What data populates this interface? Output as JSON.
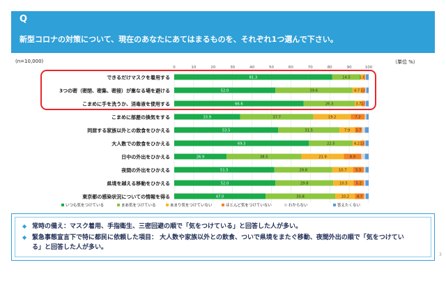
{
  "header": {
    "q": "Q",
    "question": "新型コロナの対策について、現在のあなたにあてはまるものを、それぞれ1つ選んで下さい。"
  },
  "n_label": "(n=10,000)",
  "unit_label": "（単位 %）",
  "colors": {
    "header_bg": "#2fa0d8",
    "highlight": "#e8262a"
  },
  "chart_data": {
    "type": "bar",
    "orientation": "horizontal",
    "stacked": true,
    "xlim": [
      0,
      100
    ],
    "x_ticks": [
      0,
      10,
      20,
      30,
      40,
      50,
      60,
      70,
      80,
      90,
      100
    ],
    "categories": [
      "できるだけマスクを着用する",
      "3つの密（密閉、密集、密接）が重なる場を避ける",
      "こまめに手を洗うか、消毒液を使用する",
      "こまめに部屋の換気をする",
      "同居する家族以外との飲食をひかえる",
      "大人数での飲食をひかえる",
      "日中の外出をひかえる",
      "夜間の外出をひかえる",
      "県境を越える移動をひかえる",
      "東京都の感染状況についての情報を得る"
    ],
    "series": [
      {
        "name": "いつも気をつけている",
        "color": "#1aab4a",
        "values": [
          81.3,
          52.0,
          66.6,
          33.9,
          53.5,
          69.3,
          26.9,
          51.5,
          52.0,
          47.0
        ]
      },
      {
        "name": "まあ気をつけている",
        "color": "#8dc63f",
        "values": [
          14.5,
          39.6,
          26.3,
          37.7,
          31.5,
          22.5,
          38.5,
          29.8,
          29.8,
          35.8
        ]
      },
      {
        "name": "あまり気をつけていない",
        "color": "#f7b52b",
        "values": [
          1.6,
          4.7,
          3.7,
          19.2,
          7.9,
          4.2,
          21.9,
          10.7,
          10.5,
          10.2
        ]
      },
      {
        "name": "ほとんど気をつけていない",
        "color": "#f58220",
        "values": [
          0.8,
          1.8,
          1.5,
          7.2,
          3.7,
          1.8,
          8.9,
          5.5,
          5.2,
          4.7
        ]
      },
      {
        "name": "わからない",
        "color": "#d9d9d9",
        "values": [
          0.4,
          0.7,
          0.5,
          0.8,
          1.5,
          0.6,
          1.9,
          0.9,
          0.9,
          0.8
        ]
      },
      {
        "name": "答えたくない",
        "color": "#5b9bd5",
        "values": [
          1.4,
          1.2,
          1.4,
          1.2,
          1.9,
          1.6,
          1.9,
          1.6,
          1.6,
          1.5
        ]
      }
    ],
    "data_labels": [
      [
        "81.3",
        "14.5",
        "1.6",
        "",
        "",
        ""
      ],
      [
        "52.0",
        "39.6",
        "4.7",
        "1.8",
        "",
        ""
      ],
      [
        "66.6",
        "26.3",
        "3.7",
        "1.5",
        "",
        ""
      ],
      [
        "33.9",
        "37.7",
        "19.2",
        "7.2",
        "",
        ""
      ],
      [
        "53.5",
        "31.5",
        "7.9",
        "3.7",
        "",
        ""
      ],
      [
        "69.3",
        "22.5",
        "4.2",
        "1.8",
        "",
        ""
      ],
      [
        "26.9",
        "38.5",
        "21.9",
        "8.9",
        "",
        ""
      ],
      [
        "51.5",
        "29.8",
        "10.7",
        "5.5",
        "",
        ""
      ],
      [
        "52.0",
        "29.8",
        "10.5",
        "5.2",
        "",
        ""
      ],
      [
        "47.0",
        "35.8",
        "10.2",
        "4.7",
        "",
        ""
      ]
    ],
    "legend_position": "bottom",
    "highlighted_rows": [
      0,
      1,
      2
    ]
  },
  "notes": [
    "常時の備え：マスク着用、手指衛生、三密回避の順で「気をつけている」と回答した人が多い。",
    "緊急事態宣言下で特に都民に依頼した項目： 大人数や家族以外との飲食、ついで県境をまたぐ移動、夜間外出の順で「気をつけている」と回答した人が多い。"
  ],
  "page_number": "3"
}
